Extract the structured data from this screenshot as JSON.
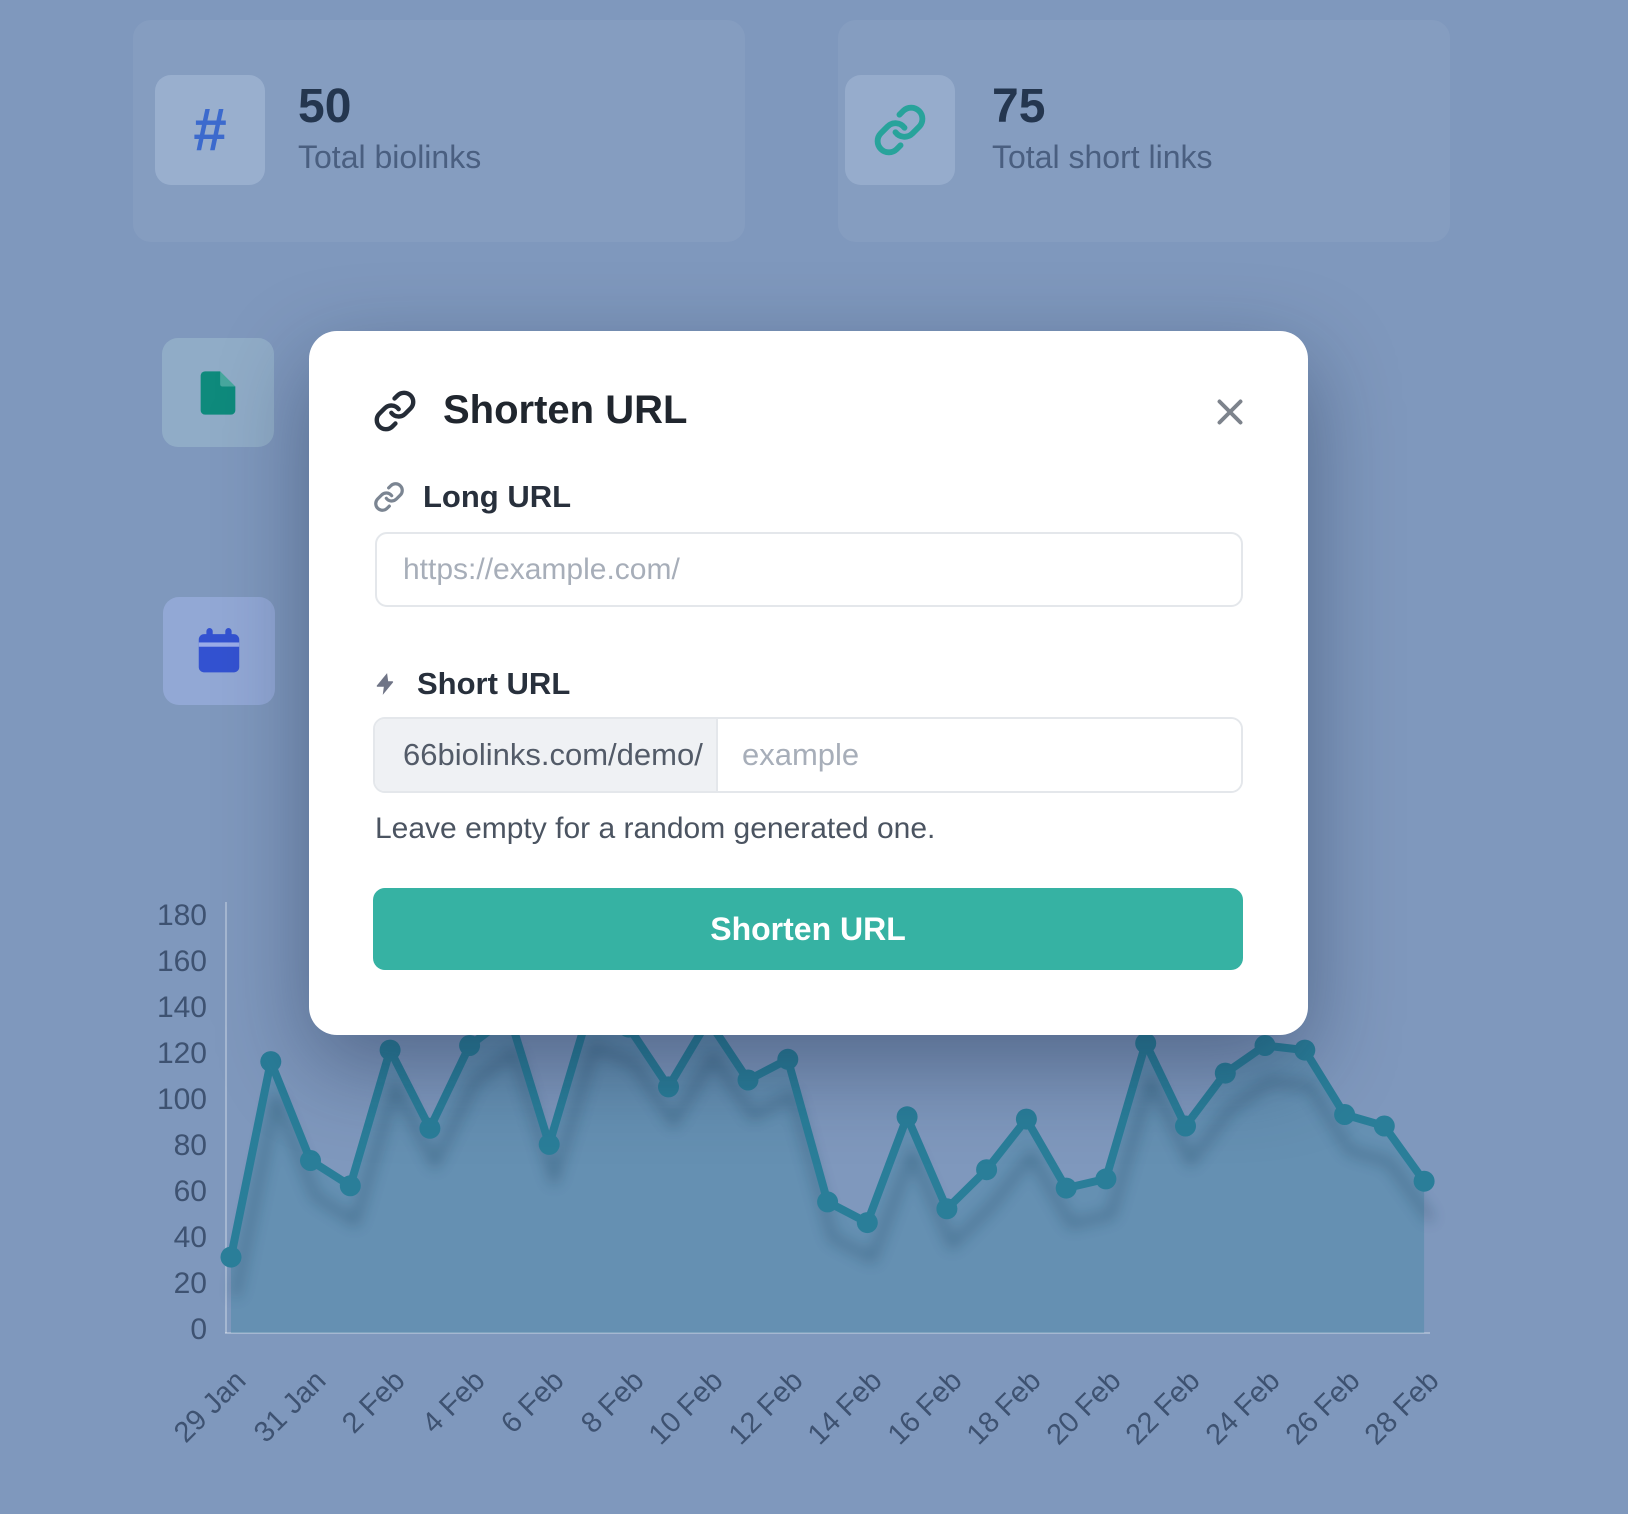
{
  "stats": {
    "cards": [
      {
        "icon": "hash-icon",
        "glyph": "#",
        "value": "50",
        "label": "Total biolinks"
      },
      {
        "icon": "link-icon",
        "value": "75",
        "label": "Total short links"
      },
      {
        "icon": "file-icon"
      },
      {
        "icon": "calendar-icon"
      }
    ]
  },
  "modal": {
    "title": "Shorten URL",
    "title_icon": "link-icon",
    "close_icon": "x-icon",
    "long_url_label": "Long URL",
    "long_url_icon": "link-icon",
    "long_url_placeholder": "https://example.com/",
    "short_url_label": "Short URL",
    "short_url_icon": "lightning-icon",
    "short_url_prefix": "66biolinks.com/demo/",
    "short_url_placeholder": "example",
    "helper_text": "Leave empty for a random generated one.",
    "submit_label": "Shorten URL"
  },
  "chart_data": {
    "type": "line",
    "title": "",
    "x": [
      "29 Jan",
      "30 Jan",
      "31 Jan",
      "1 Feb",
      "2 Feb",
      "3 Feb",
      "4 Feb",
      "5 Feb",
      "6 Feb",
      "7 Feb",
      "8 Feb",
      "9 Feb",
      "10 Feb",
      "11 Feb",
      "12 Feb",
      "13 Feb",
      "14 Feb",
      "15 Feb",
      "16 Feb",
      "17 Feb",
      "18 Feb",
      "19 Feb",
      "20 Feb",
      "21 Feb",
      "22 Feb",
      "23 Feb",
      "24 Feb",
      "25 Feb",
      "26 Feb",
      "27 Feb",
      "28 Feb"
    ],
    "values": [
      33,
      118,
      75,
      64,
      123,
      89,
      125,
      138,
      82,
      140,
      133,
      107,
      136,
      110,
      119,
      57,
      48,
      94,
      54,
      71,
      93,
      63,
      67,
      126,
      90,
      113,
      125,
      123,
      95,
      90,
      66
    ],
    "x_tick_labels": [
      "29 Jan",
      "31 Jan",
      "2 Feb",
      "4 Feb",
      "6 Feb",
      "8 Feb",
      "10 Feb",
      "12 Feb",
      "14 Feb",
      "16 Feb",
      "18 Feb",
      "20 Feb",
      "22 Feb",
      "24 Feb",
      "26 Feb",
      "28 Feb"
    ],
    "y_ticks": [
      0,
      20,
      40,
      60,
      80,
      100,
      120,
      140,
      160,
      180
    ],
    "ylim": [
      0,
      180
    ],
    "grid": false,
    "legend": "none",
    "note": "points from 5 Feb, 7-8 Feb and 10 Feb peaks are partially hidden behind the modal",
    "line_color": "#2A7E99",
    "fill_color": "rgba(42,126,153,0.30)",
    "point_radius_px": 10.5
  },
  "colors": {
    "background": "#7F98BD",
    "accent": "#36B2A3",
    "chart_line": "#2A7E99",
    "hash_icon": "#3C6ACD",
    "link_icon": "#28A39B",
    "file_icon": "#0E8A7C",
    "calendar_icon": "#3352D1",
    "axis_text": "#3E5271"
  }
}
